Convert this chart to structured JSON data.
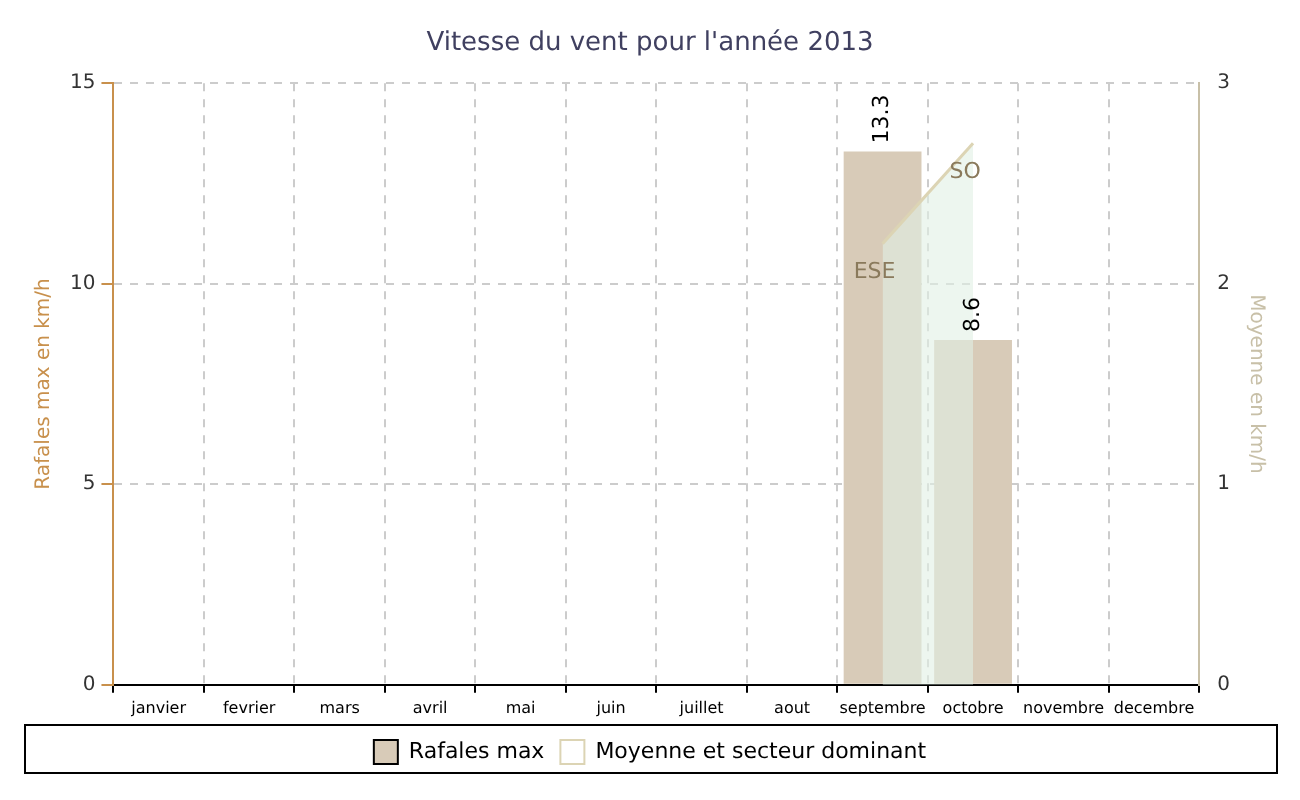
{
  "chart_data": {
    "type": "bar",
    "title": "Vitesse du vent pour l'année 2013",
    "ylabel": "Rafales max en km/h",
    "y2label": "Moyenne en km/h",
    "categories": [
      "janvier",
      "fevrier",
      "mars",
      "avril",
      "mai",
      "juin",
      "juillet",
      "aout",
      "septembre",
      "octobre",
      "novembre",
      "decembre"
    ],
    "series": [
      {
        "name": "Rafales max",
        "color": "#d8cbb8",
        "values": [
          null,
          null,
          null,
          null,
          null,
          null,
          null,
          null,
          13.3,
          8.6,
          null,
          null
        ],
        "value_labels": [
          null,
          null,
          null,
          null,
          null,
          null,
          null,
          null,
          "13.3",
          "8.6",
          null,
          null
        ]
      },
      {
        "name": "Moyenne et secteur dominant",
        "type": "area",
        "axis": "y2",
        "color": "#dcd4b4",
        "values": [
          null,
          null,
          null,
          null,
          null,
          null,
          null,
          null,
          2.2,
          2.7,
          null,
          null
        ],
        "value_labels": [
          null,
          null,
          null,
          null,
          null,
          null,
          null,
          null,
          "ESE",
          "SO",
          null,
          null
        ]
      }
    ],
    "ylim": [
      0,
      15
    ],
    "yticks": [
      0,
      5,
      10,
      15
    ],
    "y2lim": [
      0,
      3
    ],
    "y2ticks": [
      0,
      1,
      2,
      3
    ],
    "grid": true,
    "legend": "bottom"
  }
}
